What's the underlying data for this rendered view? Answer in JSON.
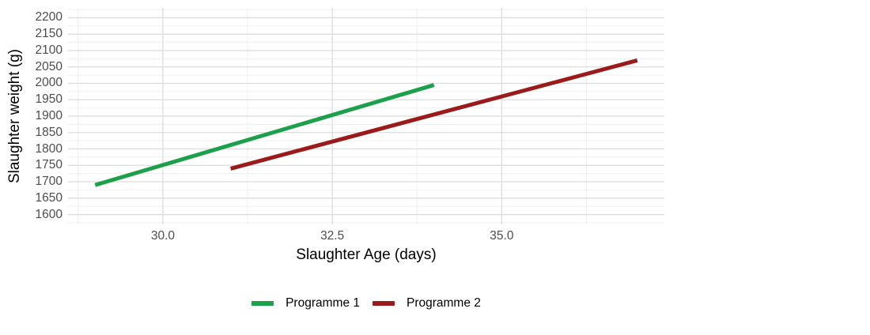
{
  "chart_data": {
    "type": "line",
    "title": "",
    "xlabel": "Slaughter Age (days)",
    "ylabel": "Slaughter weight (g)",
    "xlim": [
      28.6,
      37.4
    ],
    "ylim": [
      1570,
      2230
    ],
    "grid": true,
    "legend_position": "bottom",
    "x_ticks": [
      {
        "value": 30.0,
        "label": "30.0"
      },
      {
        "value": 32.5,
        "label": "32.5"
      },
      {
        "value": 35.0,
        "label": "35.0"
      }
    ],
    "x_minor_ticks": [
      28.75,
      31.25,
      33.75,
      36.25
    ],
    "y_ticks": [
      {
        "value": 2200,
        "label": "2200"
      },
      {
        "value": 2150,
        "label": "2150"
      },
      {
        "value": 2100,
        "label": "2100"
      },
      {
        "value": 2050,
        "label": "2050"
      },
      {
        "value": 2000,
        "label": "2000"
      },
      {
        "value": 1950,
        "label": "1950"
      },
      {
        "value": 1900,
        "label": "1900"
      },
      {
        "value": 1850,
        "label": "1850"
      },
      {
        "value": 1800,
        "label": "1800"
      },
      {
        "value": 1750,
        "label": "1750"
      },
      {
        "value": 1700,
        "label": "1700"
      },
      {
        "value": 1650,
        "label": "1650"
      },
      {
        "value": 1600,
        "label": "1600"
      }
    ],
    "y_minor_ticks": [
      1575,
      1625,
      1675,
      1725,
      1775,
      1825,
      1875,
      1925,
      1975,
      2025,
      2075,
      2125,
      2175,
      2225
    ],
    "series": [
      {
        "name": "Programme 1",
        "color": "#1CA04A",
        "x": [
          29.0,
          34.0
        ],
        "y": [
          1690,
          1995
        ]
      },
      {
        "name": "Programme 2",
        "color": "#9B1B1B",
        "x": [
          31.0,
          37.0
        ],
        "y": [
          1740,
          2070
        ]
      }
    ]
  },
  "colors": {
    "background": "#ffffff",
    "grid_major": "#dcdcdc",
    "grid_minor": "#efefef",
    "tick_label": "#4d4d4d",
    "axis_title": "#000000",
    "programme1": "#1CA04A",
    "programme2": "#9B1B1B"
  }
}
